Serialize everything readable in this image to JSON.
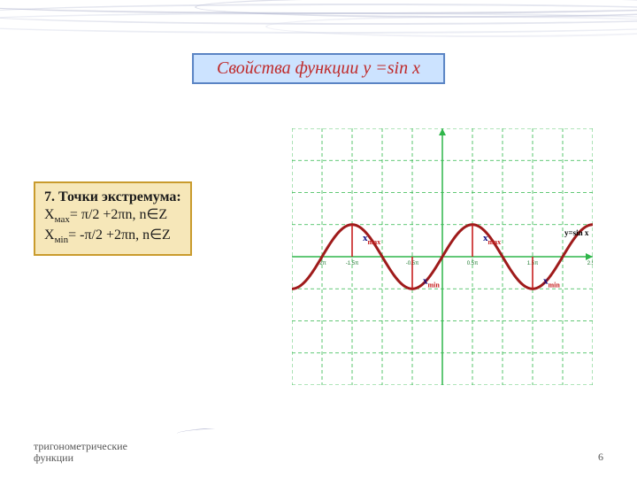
{
  "title": "Свойства функции y =sin x",
  "info": {
    "line1": "7. Точки экстремума:",
    "sub_max": "мах",
    "eq_max": "= π/2 +2πn, n∈Z",
    "sub_min": "мin",
    "eq_min": "= -π/2 +2πn, n∈Z"
  },
  "footer": {
    "left_l1": "тригонометрические",
    "left_l2": "функции",
    "page": "6"
  },
  "chart": {
    "type": "line",
    "function_label": "y=sin x",
    "xmin_pi": -2.5,
    "xmax_pi": 2.5,
    "ymin": -4,
    "ymax": 4,
    "xtick_step_pi": 0.5,
    "ytick_step": 1,
    "grid_color": "#2fb64a",
    "axis_color": "#2fb64a",
    "grid_dash": "4,3",
    "axis_width": 1.5,
    "background": "#ffffff",
    "curve_color": "#9f1b1b",
    "curve_width": 3,
    "amplitude": 1,
    "xticklabels": [
      "",
      "-2π",
      "-1.5π",
      "",
      "-0.5π",
      "",
      "0.5π",
      "",
      "1.5π",
      "",
      "2.5π"
    ],
    "xticklabel_fontsize": 6,
    "xticklabel_color": "#1f7a30",
    "extrema_marker_color": "#c61f1f",
    "extrema_label_fontsize": 11,
    "extrema_label_color_x": "#0a0a80",
    "extrema_label_color_sub": "#c61f1f",
    "maxima_pi": [
      -1.5,
      0.5
    ],
    "minima_pi": [
      -0.5,
      1.5
    ],
    "label_max": "max",
    "label_min": "min",
    "label_prefix": "x",
    "funclabel_fontsize": 9,
    "funclabel_color": "#000000"
  }
}
